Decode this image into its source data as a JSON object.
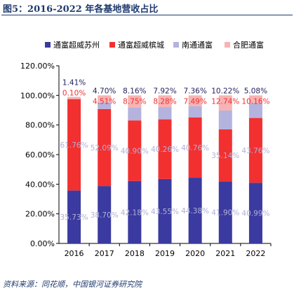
{
  "figure": {
    "title": "图5：2016-2022 年各基地营收占比",
    "source": "资料来源：同花顺，中国银河证券研究院"
  },
  "colors": {
    "series": [
      "#3a3aa0",
      "#f23030",
      "#b3b3de",
      "#f7b3b3"
    ],
    "label_text": [
      "#b0b0d8",
      "#b0b0d8",
      "#f23030",
      "#f23030"
    ],
    "axis": "#000000",
    "title": "#1f3a6e"
  },
  "chart_data": {
    "type": "bar",
    "stacked": true,
    "categories": [
      "2016",
      "2017",
      "2018",
      "2019",
      "2020",
      "2021",
      "2022"
    ],
    "series": [
      {
        "name": "通富超威苏州",
        "values": [
          35.73,
          38.7,
          42.18,
          43.55,
          44.38,
          41.9,
          40.99
        ],
        "labels": [
          "35.73%",
          "38.70%",
          "42.18%",
          "43.55%",
          "44.38%",
          "41.90%",
          "40.99%"
        ]
      },
      {
        "name": "通富超威槟城",
        "values": [
          61.76,
          52.09,
          40.9,
          40.26,
          40.76,
          35.14,
          43.76
        ],
        "labels": [
          "61.76%",
          "52.09%",
          "40.90%",
          "40.26%",
          "40.76%",
          "35.14%",
          "43.76%"
        ]
      },
      {
        "name": "南通通富",
        "values": [
          0.1,
          4.51,
          8.75,
          8.28,
          7.49,
          12.74,
          10.16
        ],
        "labels": [
          "0.10%",
          "4.51%",
          "8.75%",
          "8.28%",
          "7.49%",
          "12.74%",
          "10.16%"
        ]
      },
      {
        "name": "合肥通富",
        "values": [
          1.41,
          4.7,
          8.16,
          7.92,
          7.36,
          10.22,
          5.08
        ],
        "labels": [
          "1.41%",
          "4.70%",
          "8.16%",
          "7.92%",
          "7.36%",
          "10.22%",
          "5.08%"
        ]
      }
    ],
    "ylim": [
      0,
      120
    ],
    "yticks": [
      "0.00%",
      "20.00%",
      "40.00%",
      "60.00%",
      "80.00%",
      "100.00%",
      "120.00%"
    ],
    "xlabel": "",
    "ylabel": "",
    "grid": false,
    "legend_position": "top"
  }
}
